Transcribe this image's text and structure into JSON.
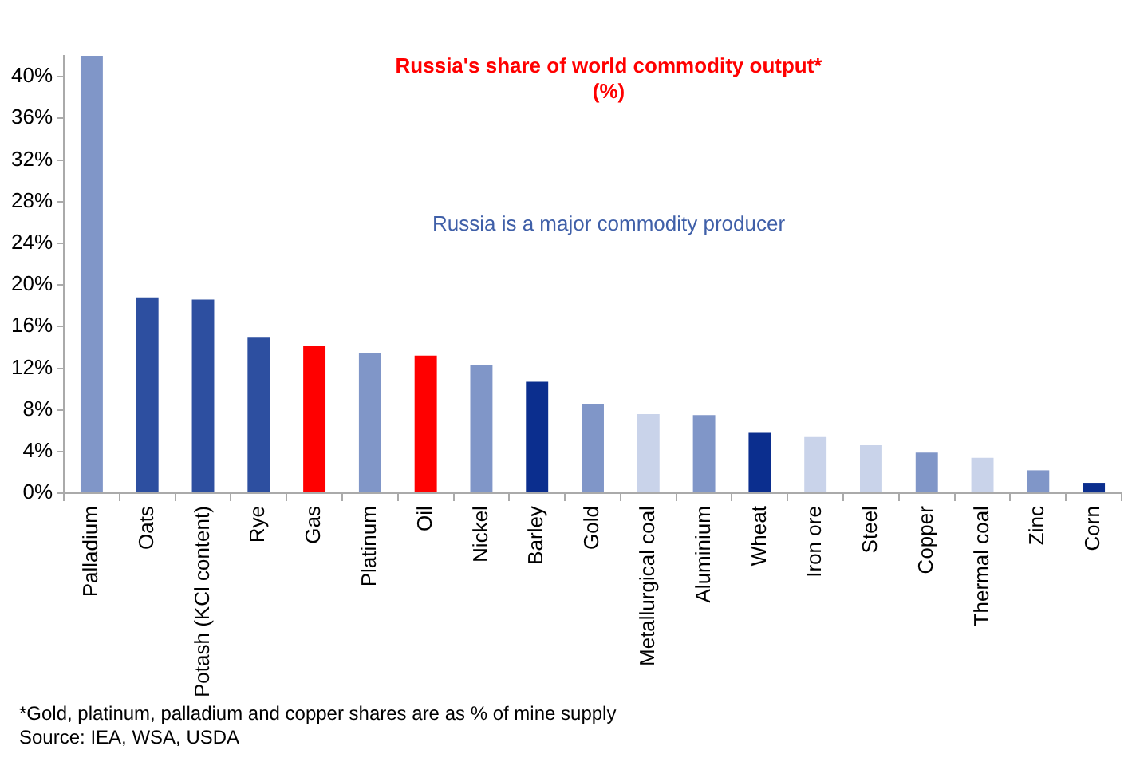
{
  "chart_data": {
    "type": "bar",
    "title": "Russia's share of world commodity output*",
    "subtitle": "(%)",
    "categories": [
      "Palladium",
      "Oats",
      "Potash (KCl content)",
      "Rye",
      "Gas",
      "Platinum",
      "Oil",
      "Nickel",
      "Barley",
      "Gold",
      "Metallurgical coal",
      "Aluminium",
      "Wheat",
      "Iron ore",
      "Steel",
      "Copper",
      "Thermal coal",
      "Zinc",
      "Corn"
    ],
    "values": [
      42,
      18.8,
      18.6,
      15.0,
      14.1,
      13.5,
      13.2,
      12.3,
      10.7,
      8.6,
      7.6,
      7.5,
      5.8,
      5.4,
      4.6,
      3.9,
      3.4,
      2.2,
      1.0
    ],
    "colors": [
      "#8096c8",
      "#2d4fa0",
      "#2d4fa0",
      "#2d4fa0",
      "#ff0000",
      "#8096c8",
      "#ff0000",
      "#8096c8",
      "#0b2e8e",
      "#8096c8",
      "#c9d3ea",
      "#8096c8",
      "#0b2e8e",
      "#c9d3ea",
      "#c9d3ea",
      "#8096c8",
      "#c9d3ea",
      "#8096c8",
      "#0b2e8e"
    ],
    "ylim": [
      0,
      42
    ],
    "yticks": [
      {
        "value": 0,
        "label": "0%"
      },
      {
        "value": 4,
        "label": "4%"
      },
      {
        "value": 8,
        "label": "8%"
      },
      {
        "value": 12,
        "label": "12%"
      },
      {
        "value": 16,
        "label": "16%"
      },
      {
        "value": 20,
        "label": "20%"
      },
      {
        "value": 24,
        "label": "24%"
      },
      {
        "value": 28,
        "label": "28%"
      },
      {
        "value": 32,
        "label": "32%"
      },
      {
        "value": 36,
        "label": "36%"
      },
      {
        "value": 40,
        "label": "40%"
      }
    ],
    "annotations": [
      "Russia is a major commodity producer",
      "*Gold, platinum, palladium and copper shares are as % of mine supply",
      "Source: IEA, WSA, USDA"
    ],
    "grid": false,
    "legend": false
  }
}
